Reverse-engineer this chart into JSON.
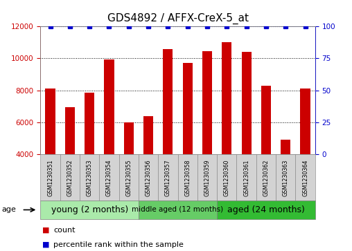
{
  "title": "GDS4892 / AFFX-CreX-5_at",
  "samples": [
    "GSM1230351",
    "GSM1230352",
    "GSM1230353",
    "GSM1230354",
    "GSM1230355",
    "GSM1230356",
    "GSM1230357",
    "GSM1230358",
    "GSM1230359",
    "GSM1230360",
    "GSM1230361",
    "GSM1230362",
    "GSM1230363",
    "GSM1230364"
  ],
  "counts": [
    8100,
    6950,
    7850,
    9950,
    6000,
    6400,
    10600,
    9700,
    10450,
    11000,
    10400,
    8300,
    4900,
    8100
  ],
  "percentiles": [
    100,
    100,
    100,
    100,
    100,
    100,
    100,
    100,
    100,
    100,
    100,
    100,
    100,
    100
  ],
  "ylim_left": [
    4000,
    12000
  ],
  "ylim_right": [
    0,
    100
  ],
  "yticks_left": [
    4000,
    6000,
    8000,
    10000,
    12000
  ],
  "yticks_right": [
    0,
    25,
    50,
    75,
    100
  ],
  "bar_color": "#cc0000",
  "dot_color": "#0000cc",
  "background_color": "#ffffff",
  "groups": [
    {
      "label": "young (2 months)",
      "indices": [
        0,
        1,
        2,
        3,
        4
      ],
      "color": "#aaeaaa",
      "fontsize": 9
    },
    {
      "label": "middle aged (12 months)",
      "indices": [
        5,
        6,
        7,
        8
      ],
      "color": "#66cc66",
      "fontsize": 7.5
    },
    {
      "label": "aged (24 months)",
      "indices": [
        9,
        10,
        11,
        12,
        13
      ],
      "color": "#33bb33",
      "fontsize": 9
    }
  ],
  "legend_count_label": "count",
  "legend_percentile_label": "percentile rank within the sample",
  "age_label": "age",
  "title_fontsize": 11,
  "tick_fontsize": 7.5,
  "bar_width": 0.5
}
